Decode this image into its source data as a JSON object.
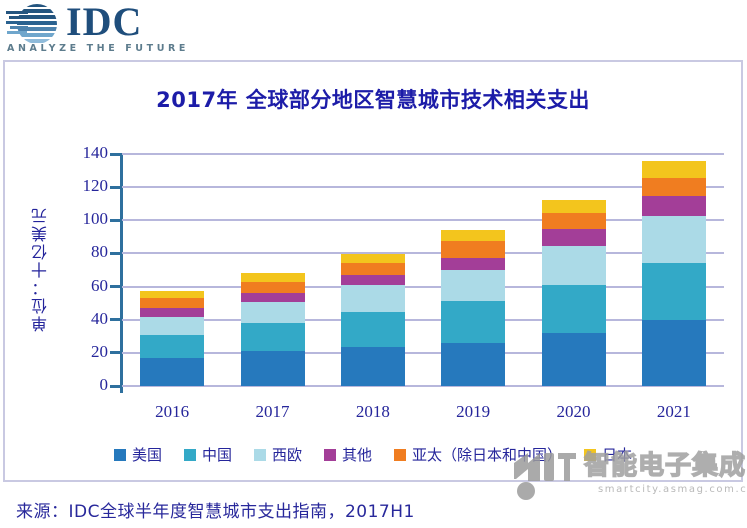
{
  "brand": {
    "name": "IDC",
    "tagline": "ANALYZE THE FUTURE"
  },
  "chart": {
    "title": "2017年 全球部分地区智慧城市技术相关支出",
    "unit_label": "单位：十亿美元"
  },
  "chart_data": {
    "type": "bar",
    "stacked": true,
    "title": "2017年 全球部分地区智慧城市技术相关支出",
    "xlabel": "",
    "ylabel": "单位：十亿美元",
    "categories": [
      "2016",
      "2017",
      "2018",
      "2019",
      "2020",
      "2021"
    ],
    "series": [
      {
        "name": "美国",
        "color": "#2679BD",
        "values": [
          17,
          21,
          23.5,
          26,
          32,
          40
        ]
      },
      {
        "name": "中国",
        "color": "#33A9C7",
        "values": [
          13.5,
          17,
          21,
          25.5,
          29,
          34.5
        ]
      },
      {
        "name": "西欧",
        "color": "#ABDAE7",
        "values": [
          11,
          13,
          16.5,
          18.5,
          23.5,
          28
        ]
      },
      {
        "name": "其他",
        "color": "#A33E98",
        "values": [
          5.5,
          5,
          6,
          7,
          10,
          12
        ]
      },
      {
        "name": "亚太（除日本和中国）",
        "color": "#F07D20",
        "values": [
          6,
          7,
          7,
          10.5,
          10,
          11
        ]
      },
      {
        "name": "日本",
        "color": "#F3C51D",
        "values": [
          4.5,
          5.5,
          5.5,
          6.5,
          8,
          10
        ]
      }
    ],
    "totals": [
      57.5,
      68.5,
      79.5,
      94,
      112.5,
      135.5
    ],
    "ylim": [
      0,
      140
    ],
    "yticks": [
      0,
      20,
      40,
      60,
      80,
      100,
      120,
      140
    ],
    "grid": true,
    "legend_position": "bottom"
  },
  "source_line": "来源：IDC全球半年度智慧城市支出指南，2017H1",
  "watermark": {
    "brand": "智能电子集成",
    "url": "smartcity.asmag.com.cn"
  },
  "colors": {
    "title_navy": "#1C1CA8",
    "text_navy": "#26269B",
    "axis_blue": "#2E709E",
    "gridline": "#B7B7DC",
    "frame_border": "#C9C9E2",
    "idc_navy": "#1F4E7C",
    "idc_tagline_gray": "#5D7C8D",
    "watermark_gray": "#A0A0A0"
  }
}
